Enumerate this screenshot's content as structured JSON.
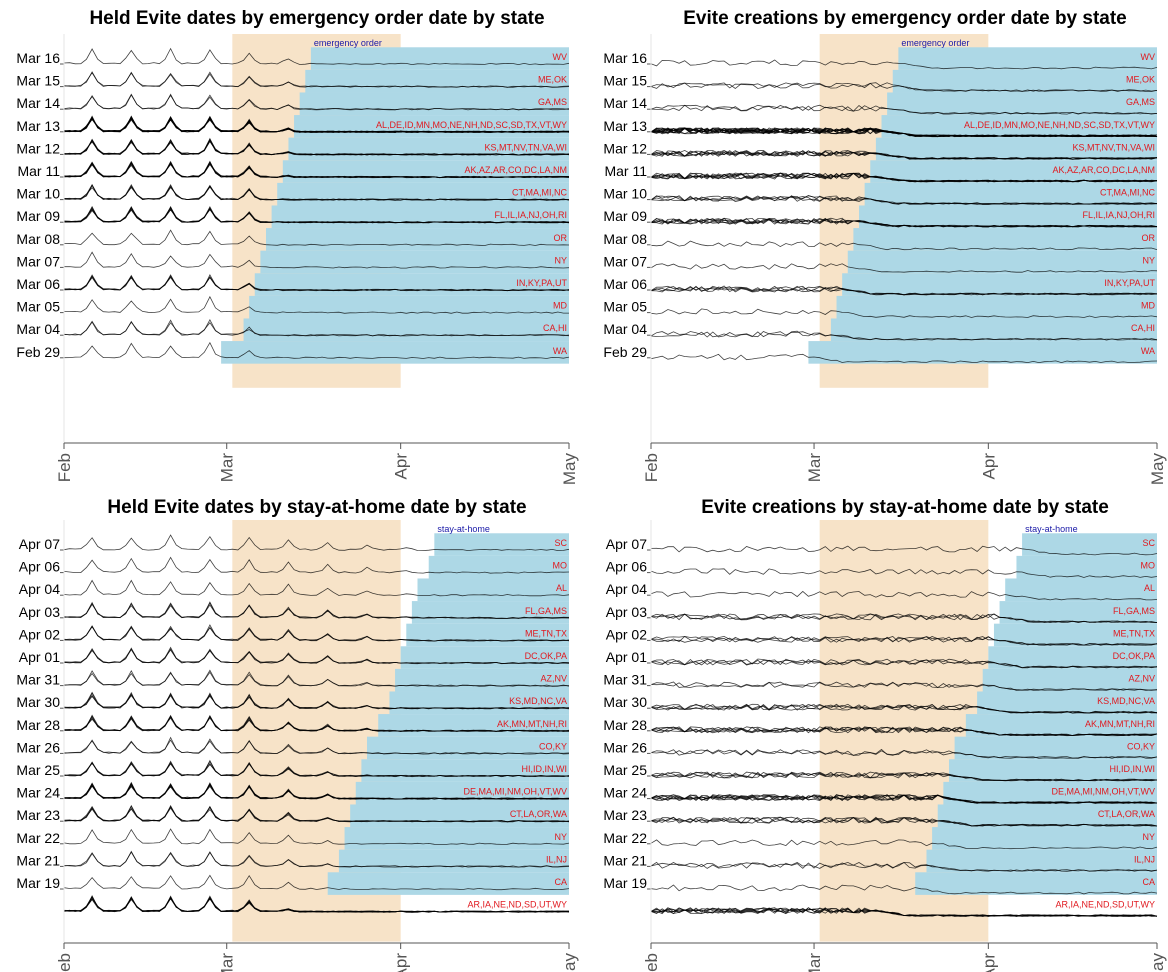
{
  "figure": {
    "colors": {
      "background": "#ffffff",
      "window_band": "#f7e3c8",
      "after_bar": "#add8e6",
      "series_line": "#000000",
      "state_label": "#e0191f",
      "marker_label": "#1a1aa8",
      "axis": "#555555"
    },
    "x_axis": {
      "ticks": [
        "Feb",
        "Mar",
        "Apr",
        "May"
      ]
    }
  },
  "chart_data": [
    {
      "type": "line",
      "title": "Held Evite dates by emergency order date by state",
      "marker_label": "emergency order",
      "series_style": "weekly_peaks",
      "x_range": [
        "2020-02-01",
        "2020-05-01"
      ],
      "shaded_window": [
        "2020-03-02",
        "2020-04-01"
      ],
      "groups": [
        {
          "date_label": "Mar 16",
          "states": "WV",
          "n_lines": 1
        },
        {
          "date_label": "Mar 15",
          "states": "ME,OK",
          "n_lines": 2
        },
        {
          "date_label": "Mar 14",
          "states": "GA,MS",
          "n_lines": 2
        },
        {
          "date_label": "Mar 13",
          "states": "AL,DE,ID,MN,MO,NE,NH,ND,SC,SD,TX,VT,WY",
          "n_lines": 13
        },
        {
          "date_label": "Mar 12",
          "states": "KS,MT,NV,TN,VA,WI",
          "n_lines": 6
        },
        {
          "date_label": "Mar 11",
          "states": "AK,AZ,AR,CO,DC,LA,NM",
          "n_lines": 7
        },
        {
          "date_label": "Mar 10",
          "states": "CT,MA,MI,NC",
          "n_lines": 4
        },
        {
          "date_label": "Mar 09",
          "states": "FL,IL,IA,NJ,OH,RI",
          "n_lines": 6
        },
        {
          "date_label": "Mar 08",
          "states": "OR",
          "n_lines": 1
        },
        {
          "date_label": "Mar 07",
          "states": "NY",
          "n_lines": 1
        },
        {
          "date_label": "Mar 06",
          "states": "IN,KY,PA,UT",
          "n_lines": 4
        },
        {
          "date_label": "Mar 05",
          "states": "MD",
          "n_lines": 1
        },
        {
          "date_label": "Mar 04",
          "states": "CA,HI",
          "n_lines": 2
        },
        {
          "date_label": "Feb 29",
          "states": "WA",
          "n_lines": 1
        }
      ]
    },
    {
      "type": "line",
      "title": "Evite creations by emergency order date by state",
      "marker_label": "emergency order",
      "series_style": "noisy_drop",
      "x_range": [
        "2020-02-01",
        "2020-05-01"
      ],
      "shaded_window": [
        "2020-03-02",
        "2020-04-01"
      ],
      "groups": [
        {
          "date_label": "Mar 16",
          "states": "WV",
          "n_lines": 1
        },
        {
          "date_label": "Mar 15",
          "states": "ME,OK",
          "n_lines": 2
        },
        {
          "date_label": "Mar 14",
          "states": "GA,MS",
          "n_lines": 2
        },
        {
          "date_label": "Mar 13",
          "states": "AL,DE,ID,MN,MO,NE,NH,ND,SC,SD,TX,VT,WY",
          "n_lines": 13
        },
        {
          "date_label": "Mar 12",
          "states": "KS,MT,NV,TN,VA,WI",
          "n_lines": 6
        },
        {
          "date_label": "Mar 11",
          "states": "AK,AZ,AR,CO,DC,LA,NM",
          "n_lines": 7
        },
        {
          "date_label": "Mar 10",
          "states": "CT,MA,MI,NC",
          "n_lines": 4
        },
        {
          "date_label": "Mar 09",
          "states": "FL,IL,IA,NJ,OH,RI",
          "n_lines": 6
        },
        {
          "date_label": "Mar 08",
          "states": "OR",
          "n_lines": 1
        },
        {
          "date_label": "Mar 07",
          "states": "NY",
          "n_lines": 1
        },
        {
          "date_label": "Mar 06",
          "states": "IN,KY,PA,UT",
          "n_lines": 4
        },
        {
          "date_label": "Mar 05",
          "states": "MD",
          "n_lines": 1
        },
        {
          "date_label": "Mar 04",
          "states": "CA,HI",
          "n_lines": 2
        },
        {
          "date_label": "Feb 29",
          "states": "WA",
          "n_lines": 1
        }
      ]
    },
    {
      "type": "line",
      "title": "Held Evite dates by stay-at-home date by state",
      "marker_label": "stay-at-home",
      "series_style": "weekly_peaks",
      "x_range": [
        "2020-02-01",
        "2020-05-01"
      ],
      "shaded_window": [
        "2020-03-02",
        "2020-04-01"
      ],
      "groups": [
        {
          "date_label": "Apr 07",
          "states": "SC",
          "n_lines": 1
        },
        {
          "date_label": "Apr 06",
          "states": "MO",
          "n_lines": 1
        },
        {
          "date_label": "Apr 04",
          "states": "AL",
          "n_lines": 1
        },
        {
          "date_label": "Apr 03",
          "states": "FL,GA,MS",
          "n_lines": 3
        },
        {
          "date_label": "Apr 02",
          "states": "ME,TN,TX",
          "n_lines": 3
        },
        {
          "date_label": "Apr 01",
          "states": "DC,OK,PA",
          "n_lines": 3
        },
        {
          "date_label": "Mar 31",
          "states": "AZ,NV",
          "n_lines": 2
        },
        {
          "date_label": "Mar 30",
          "states": "KS,MD,NC,VA",
          "n_lines": 4
        },
        {
          "date_label": "Mar 28",
          "states": "AK,MN,MT,NH,RI",
          "n_lines": 5
        },
        {
          "date_label": "Mar 26",
          "states": "CO,KY",
          "n_lines": 2
        },
        {
          "date_label": "Mar 25",
          "states": "HI,ID,IN,WI",
          "n_lines": 4
        },
        {
          "date_label": "Mar 24",
          "states": "DE,MA,MI,NM,OH,VT,WV",
          "n_lines": 7
        },
        {
          "date_label": "Mar 23",
          "states": "CT,LA,OR,WA",
          "n_lines": 4
        },
        {
          "date_label": "Mar 22",
          "states": "NY",
          "n_lines": 1
        },
        {
          "date_label": "Mar 21",
          "states": "IL,NJ",
          "n_lines": 2
        },
        {
          "date_label": "Mar 19",
          "states": "CA",
          "n_lines": 1
        },
        {
          "date_label": "",
          "states": "AR,IA,NE,ND,SD,UT,WY",
          "n_lines": 7
        }
      ]
    },
    {
      "type": "line",
      "title": "Evite creations by stay-at-home date by state",
      "marker_label": "stay-at-home",
      "series_style": "noisy_drop",
      "x_range": [
        "2020-02-01",
        "2020-05-01"
      ],
      "shaded_window": [
        "2020-03-02",
        "2020-04-01"
      ],
      "groups": [
        {
          "date_label": "Apr 07",
          "states": "SC",
          "n_lines": 1
        },
        {
          "date_label": "Apr 06",
          "states": "MO",
          "n_lines": 1
        },
        {
          "date_label": "Apr 04",
          "states": "AL",
          "n_lines": 1
        },
        {
          "date_label": "Apr 03",
          "states": "FL,GA,MS",
          "n_lines": 3
        },
        {
          "date_label": "Apr 02",
          "states": "ME,TN,TX",
          "n_lines": 3
        },
        {
          "date_label": "Apr 01",
          "states": "DC,OK,PA",
          "n_lines": 3
        },
        {
          "date_label": "Mar 31",
          "states": "AZ,NV",
          "n_lines": 2
        },
        {
          "date_label": "Mar 30",
          "states": "KS,MD,NC,VA",
          "n_lines": 4
        },
        {
          "date_label": "Mar 28",
          "states": "AK,MN,MT,NH,RI",
          "n_lines": 5
        },
        {
          "date_label": "Mar 26",
          "states": "CO,KY",
          "n_lines": 2
        },
        {
          "date_label": "Mar 25",
          "states": "HI,ID,IN,WI",
          "n_lines": 4
        },
        {
          "date_label": "Mar 24",
          "states": "DE,MA,MI,NM,OH,VT,WV",
          "n_lines": 7
        },
        {
          "date_label": "Mar 23",
          "states": "CT,LA,OR,WA",
          "n_lines": 4
        },
        {
          "date_label": "Mar 22",
          "states": "NY",
          "n_lines": 1
        },
        {
          "date_label": "Mar 21",
          "states": "IL,NJ",
          "n_lines": 2
        },
        {
          "date_label": "Mar 19",
          "states": "CA",
          "n_lines": 1
        },
        {
          "date_label": "",
          "states": "AR,IA,NE,ND,SD,UT,WY",
          "n_lines": 7
        }
      ]
    }
  ]
}
